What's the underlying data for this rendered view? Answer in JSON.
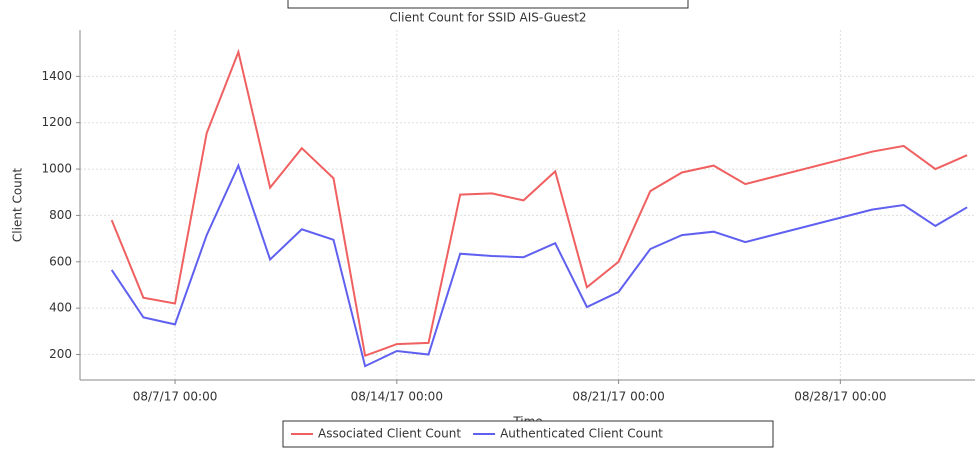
{
  "chart_data": {
    "type": "line",
    "title": "Client Count for SSID AIS-Guest2",
    "xlabel": "Time",
    "ylabel": "Client Count",
    "x": [
      "08/5/17 00:00",
      "08/6/17 00:00",
      "08/7/17 00:00",
      "08/8/17 00:00",
      "08/9/17 00:00",
      "08/10/17 00:00",
      "08/11/17 00:00",
      "08/12/17 00:00",
      "08/13/17 00:00",
      "08/14/17 00:00",
      "08/15/17 00:00",
      "08/16/17 00:00",
      "08/17/17 00:00",
      "08/18/17 00:00",
      "08/19/17 00:00",
      "08/20/17 00:00",
      "08/21/17 00:00",
      "08/22/17 00:00",
      "08/23/17 00:00",
      "08/24/17 00:00",
      "08/25/17 00:00",
      "08/29/17 00:00",
      "08/30/17 00:00",
      "08/31/17 00:00",
      "09/1/17 00:00"
    ],
    "series": [
      {
        "name": "Associated Client Count",
        "color": "#f06060",
        "values": [
          780,
          445,
          420,
          1155,
          1505,
          920,
          1090,
          960,
          195,
          245,
          250,
          890,
          895,
          865,
          990,
          490,
          600,
          905,
          985,
          1015,
          935,
          1075,
          1100,
          1000,
          1060
        ]
      },
      {
        "name": "Authenticated Client Count",
        "color": "#6060f0",
        "values": [
          565,
          360,
          330,
          715,
          1015,
          610,
          740,
          695,
          150,
          215,
          200,
          635,
          625,
          620,
          680,
          405,
          470,
          655,
          715,
          730,
          685,
          825,
          845,
          755,
          835
        ]
      }
    ],
    "xlim": [
      "08/4/17 00:00",
      "09/1/17 06:00"
    ],
    "xticks": [
      "08/7/17 00:00",
      "08/14/17 00:00",
      "08/21/17 00:00",
      "08/28/17 00:00"
    ],
    "ylim": [
      90,
      1600
    ],
    "yticks": [
      200,
      400,
      600,
      800,
      1000,
      1200,
      1400
    ],
    "grid": true
  }
}
